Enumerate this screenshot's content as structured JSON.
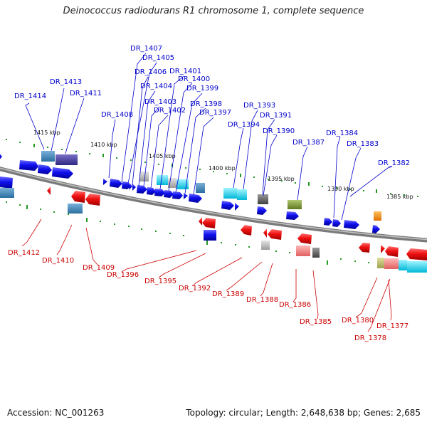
{
  "title": "Deinococcus radiodurans R1 chromosome 1, complete sequence",
  "footer": {
    "accession": "Accession: NC_001263",
    "summary": "Topology: circular; Length: 2,648,638 bp; Genes: 2,685"
  },
  "colors": {
    "forward_label": "#0000cc",
    "reverse_label": "#cc0000",
    "forward_gene": "#0000ee",
    "reverse_gene": "#ee0000",
    "tick": "#229922",
    "backbone": "#888888"
  },
  "ruler": [
    {
      "label": "1415 kbp"
    },
    {
      "label": "1410 kbp"
    },
    {
      "label": "1405 kbp"
    },
    {
      "label": "1400 kbp"
    },
    {
      "label": "1395 kbp"
    },
    {
      "label": "1390 kbp"
    },
    {
      "label": "1385 kbp"
    }
  ],
  "forward_genes": [
    {
      "label": "DR_1414"
    },
    {
      "label": "DR_1413"
    },
    {
      "label": "DR_1411"
    },
    {
      "label": "DR_1408"
    },
    {
      "label": "DR_1407"
    },
    {
      "label": "DR_1405"
    },
    {
      "label": "DR_1406"
    },
    {
      "label": "DR_1404"
    },
    {
      "label": "DR_1403"
    },
    {
      "label": "DR_1402"
    },
    {
      "label": "DR_1401"
    },
    {
      "label": "DR_1400"
    },
    {
      "label": "DR_1399"
    },
    {
      "label": "DR_1398"
    },
    {
      "label": "DR_1397"
    },
    {
      "label": "DR_1394"
    },
    {
      "label": "DR_1393"
    },
    {
      "label": "DR_1391"
    },
    {
      "label": "DR_1390"
    },
    {
      "label": "DR_1387"
    },
    {
      "label": "DR_1384"
    },
    {
      "label": "DR_1383"
    },
    {
      "label": "DR_1382"
    }
  ],
  "reverse_genes": [
    {
      "label": "DR_1412"
    },
    {
      "label": "DR_1410"
    },
    {
      "label": "DR_1409"
    },
    {
      "label": "DR_1396"
    },
    {
      "label": "DR_1395"
    },
    {
      "label": "DR_1392"
    },
    {
      "label": "DR_1389"
    },
    {
      "label": "DR_1388"
    },
    {
      "label": "DR_1386"
    },
    {
      "label": "DR_1385"
    },
    {
      "label": "DR_1380"
    },
    {
      "label": "DR_1378"
    },
    {
      "label": "DR_1377"
    }
  ]
}
